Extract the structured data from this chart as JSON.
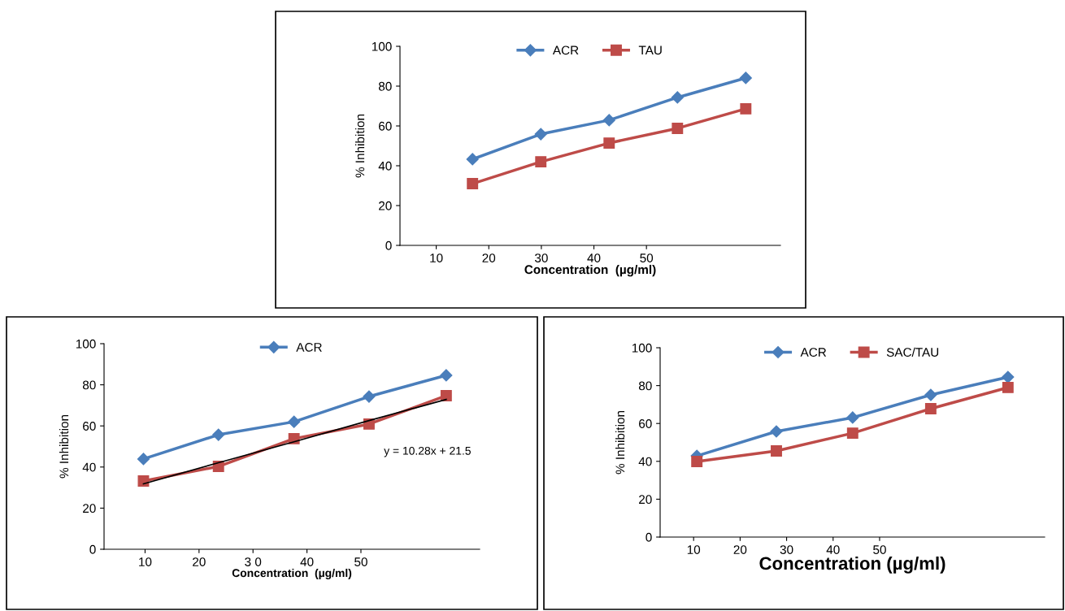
{
  "chart_data": [
    {
      "type": "line",
      "xlabel": "Concentration  (µg/ml)",
      "ylabel": "% Inhibition",
      "xlim": [
        3.1,
        75.5
      ],
      "xticks": [
        10,
        20,
        30,
        40,
        50
      ],
      "ylim": [
        0,
        100
      ],
      "yticks": [
        0,
        20,
        40,
        60,
        80,
        100
      ],
      "grid": false,
      "legend": "top",
      "series": [
        {
          "name": "ACR",
          "color": "#4a7ebb",
          "marker": "diamond",
          "x": [
            16.9,
            29.9,
            42.9,
            55.9,
            68.9
          ],
          "values": [
            43.3,
            55.9,
            62.9,
            74.3,
            84.1
          ]
        },
        {
          "name": "TAU",
          "color": "#be4b48",
          "marker": "square",
          "x": [
            16.9,
            29.9,
            42.9,
            55.9,
            68.9
          ],
          "values": [
            31,
            42,
            51.4,
            58.8,
            68.6
          ]
        }
      ]
    },
    {
      "type": "line",
      "xlabel": "Concentration  (µg/ml)",
      "ylabel": "% Inhibition",
      "xlim": [
        2.4,
        72
      ],
      "xticks": [
        10,
        20,
        {
          "value": 30,
          "label": "3 0"
        },
        40,
        50
      ],
      "ylim": [
        0,
        100
      ],
      "yticks": [
        0,
        20,
        40,
        60,
        80,
        100
      ],
      "grid": false,
      "legend": "top",
      "annotations": [
        "y = 10.28x + 21.5"
      ],
      "series": [
        {
          "name": "ACR",
          "color": "#4a7ebb",
          "marker": "diamond",
          "x": [
            9.7,
            23.6,
            37.6,
            51.5,
            65.8
          ],
          "values": [
            43.9,
            55.7,
            62,
            74.3,
            84.6
          ]
        },
        {
          "color": "#be4b48",
          "marker": "square",
          "x": [
            9.7,
            23.6,
            37.6,
            51.5,
            65.8
          ],
          "values": [
            33.2,
            40.3,
            53.8,
            60.9,
            74.7
          ]
        },
        {
          "color": "#000000",
          "marker": "none",
          "x": [
            9.7,
            23.6,
            37.6,
            51.5,
            65.8
          ],
          "values": [
            31.8,
            42.1,
            52.3,
            62.6,
            72.9
          ]
        }
      ]
    },
    {
      "type": "line",
      "xlabel": "Concentration (µg/ml)",
      "ylabel": "% Inhibition",
      "xlim": [
        2.8,
        85.5
      ],
      "xticks": [
        10,
        20,
        30,
        40,
        50
      ],
      "ylim": [
        0,
        100
      ],
      "yticks": [
        0,
        20,
        40,
        60,
        80,
        100
      ],
      "grid": false,
      "legend": "top",
      "series": [
        {
          "name": "ACR",
          "color": "#4a7ebb",
          "marker": "diamond",
          "x": [
            10.7,
            27.8,
            44.2,
            61.0,
            77.6
          ],
          "values": [
            42.9,
            55.8,
            63.1,
            75.1,
            84.5
          ]
        },
        {
          "name": "SAC/TAU",
          "color": "#be4b48",
          "marker": "square",
          "x": [
            10.7,
            27.8,
            44.2,
            61.0,
            77.6
          ],
          "values": [
            39.9,
            45.5,
            54.9,
            67.8,
            79
          ]
        }
      ]
    }
  ]
}
